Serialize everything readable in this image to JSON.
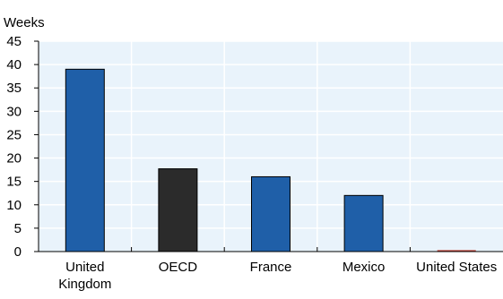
{
  "chart_data": {
    "type": "bar",
    "title": "",
    "ylabel": "Weeks",
    "xlabel": "",
    "categories": [
      [
        "United",
        "Kingdom"
      ],
      [
        "OECD"
      ],
      [
        "France"
      ],
      [
        "Mexico"
      ],
      [
        "United States"
      ]
    ],
    "values": [
      39,
      17.7,
      16,
      12,
      0.3
    ],
    "ylim": [
      0,
      45
    ],
    "yticks": [
      0,
      5,
      10,
      15,
      20,
      25,
      30,
      35,
      40,
      45
    ],
    "grid": true,
    "colors": {
      "default_bar": "#1f5fa8",
      "highlight_bar": "#2b2b2b",
      "zero_bar": "#c0392b",
      "plot_background": "#e9f3fb",
      "grid_line": "#ffffff"
    },
    "highlight_index": 1
  }
}
